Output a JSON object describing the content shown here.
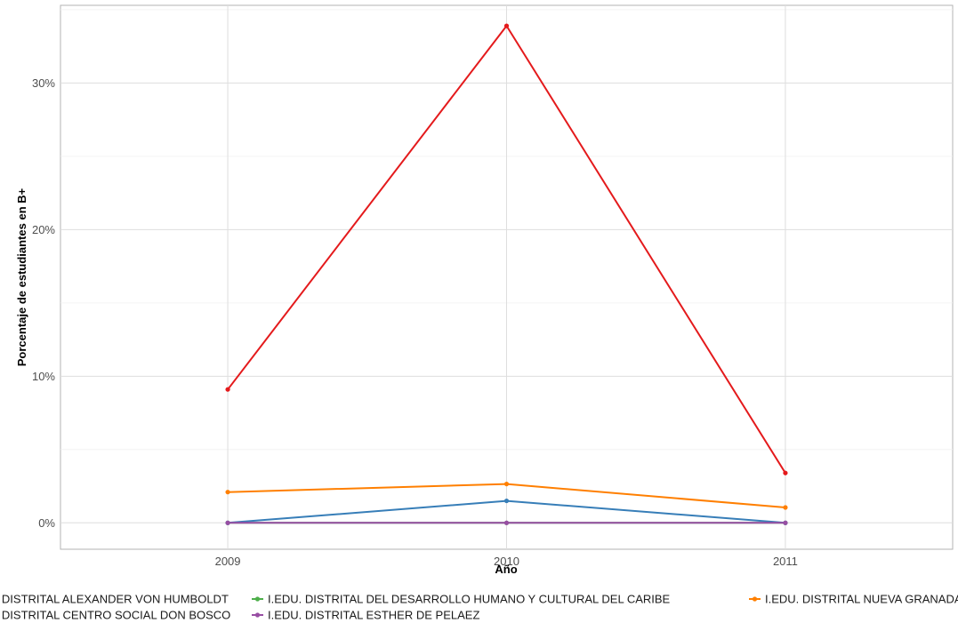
{
  "chart_data": {
    "type": "line",
    "xlabel": "Año",
    "ylabel": "Porcentaje de estudiantes en B+",
    "x": [
      2009,
      2010,
      2011
    ],
    "x_tick_labels": [
      "2009",
      "2010",
      "2011"
    ],
    "xlim": [
      2008.4,
      2011.6
    ],
    "ylim": [
      -1.8,
      35.3
    ],
    "y_ticks": [
      0,
      10,
      20,
      30
    ],
    "y_tick_labels": [
      "0%",
      "10%",
      "20%",
      "30%"
    ],
    "grid": true,
    "legend_position": "bottom",
    "series": [
      {
        "name": "I.EDU. DISTRITAL ALEXANDER VON HUMBOLDT",
        "color": "#e41a1c",
        "values": [
          9.1,
          33.9,
          3.4
        ]
      },
      {
        "name": "I.EDU. DISTRITAL CENTRO SOCIAL DON BOSCO",
        "color": "#377eb8",
        "values": [
          0.0,
          1.5,
          0.0
        ]
      },
      {
        "name": "I.EDU. DISTRITAL DEL DESARROLLO HUMANO Y CULTURAL DEL CARIBE",
        "color": "#4daf4a",
        "values": [
          0.0,
          0.0,
          0.0
        ]
      },
      {
        "name": "I.EDU. DISTRITAL ESTHER DE PELAEZ",
        "color": "#984ea3",
        "values": [
          0.0,
          0.0,
          0.0
        ]
      },
      {
        "name": "I.EDU. DISTRITAL NUEVA GRANADA",
        "color": "#ff7f00",
        "values": [
          2.1,
          2.65,
          1.05
        ]
      }
    ]
  }
}
